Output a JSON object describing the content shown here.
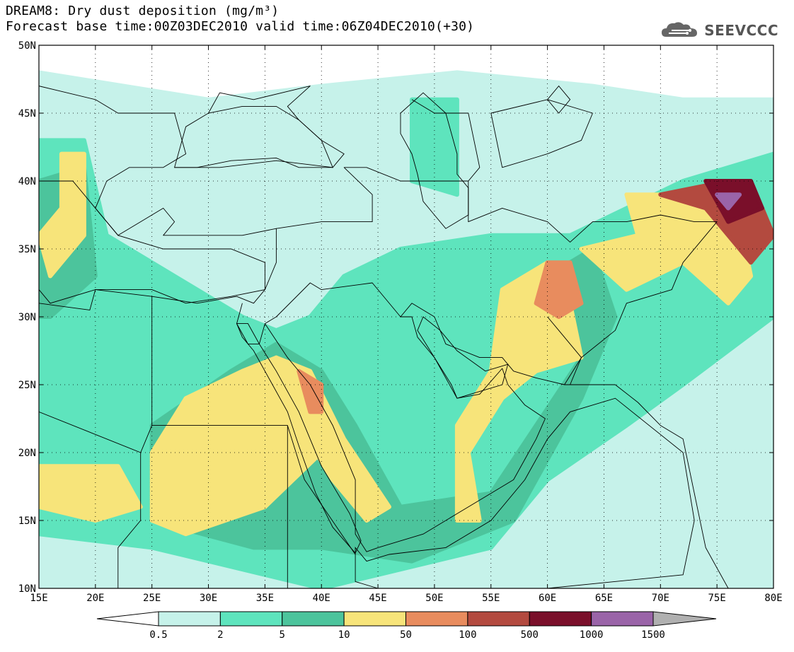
{
  "header": {
    "title": "DREAM8: Dry dust deposition (mg/m³)",
    "subtitle": "Forecast base time:00Z03DEC2010 valid time:06Z04DEC2010(+30)"
  },
  "logo": {
    "text": "SEEVCCC",
    "icon": "cloud-icon"
  },
  "map": {
    "lon_range": [
      15,
      80
    ],
    "lat_range": [
      10,
      50
    ],
    "lon_ticks": [
      {
        "value": 15,
        "label": "15E"
      },
      {
        "value": 20,
        "label": "20E"
      },
      {
        "value": 25,
        "label": "25E"
      },
      {
        "value": 30,
        "label": "30E"
      },
      {
        "value": 35,
        "label": "35E"
      },
      {
        "value": 40,
        "label": "40E"
      },
      {
        "value": 45,
        "label": "45E"
      },
      {
        "value": 50,
        "label": "50E"
      },
      {
        "value": 55,
        "label": "55E"
      },
      {
        "value": 60,
        "label": "60E"
      },
      {
        "value": 65,
        "label": "65E"
      },
      {
        "value": 70,
        "label": "70E"
      },
      {
        "value": 75,
        "label": "75E"
      },
      {
        "value": 80,
        "label": "80E"
      }
    ],
    "lat_ticks": [
      {
        "value": 10,
        "label": "10N"
      },
      {
        "value": 15,
        "label": "15N"
      },
      {
        "value": 20,
        "label": "20N"
      },
      {
        "value": 25,
        "label": "25N"
      },
      {
        "value": 30,
        "label": "30N"
      },
      {
        "value": 35,
        "label": "35N"
      },
      {
        "value": 40,
        "label": "40N"
      },
      {
        "value": 45,
        "label": "45N"
      },
      {
        "value": 50,
        "label": "50N"
      }
    ],
    "gridlines": true
  },
  "colorbar": {
    "levels": [
      "0.5",
      "2",
      "5",
      "10",
      "50",
      "100",
      "500",
      "1000",
      "1500"
    ],
    "colors": [
      "#ffffff",
      "#c6f2ea",
      "#5ee4bd",
      "#4cc49c",
      "#f7e47a",
      "#e88c5e",
      "#b34a3f",
      "#7a0f2a",
      "#9a64a8",
      "#b0b0b0"
    ]
  },
  "dust_regions": [
    {
      "level": 1,
      "points": [
        [
          15,
          48
        ],
        [
          30,
          46
        ],
        [
          40,
          47
        ],
        [
          52,
          48
        ],
        [
          64,
          47
        ],
        [
          72,
          46
        ],
        [
          80,
          46
        ],
        [
          80,
          10
        ],
        [
          15,
          10
        ]
      ]
    },
    {
      "level": 2,
      "points": [
        [
          15,
          43
        ],
        [
          19,
          43
        ],
        [
          21,
          36
        ],
        [
          33,
          30
        ],
        [
          36,
          29
        ],
        [
          39,
          30
        ],
        [
          42,
          33
        ],
        [
          47,
          35
        ],
        [
          55,
          36
        ],
        [
          62,
          36
        ],
        [
          72,
          40
        ],
        [
          80,
          42
        ],
        [
          80,
          30
        ],
        [
          72,
          25
        ],
        [
          67,
          22
        ],
        [
          60,
          18
        ],
        [
          55,
          13
        ],
        [
          45,
          11
        ],
        [
          40,
          10
        ],
        [
          25,
          13
        ],
        [
          15,
          14
        ]
      ]
    },
    {
      "level": 2,
      "points": [
        [
          48,
          46
        ],
        [
          52,
          46
        ],
        [
          52,
          39
        ],
        [
          48,
          40
        ]
      ]
    },
    {
      "level": 3,
      "points": [
        [
          15,
          40
        ],
        [
          19,
          41
        ],
        [
          20,
          33
        ],
        [
          16,
          30
        ],
        [
          15,
          30
        ]
      ]
    },
    {
      "level": 3,
      "points": [
        [
          25,
          22
        ],
        [
          32,
          26
        ],
        [
          36,
          28
        ],
        [
          40,
          26
        ],
        [
          43,
          22
        ],
        [
          47,
          16
        ],
        [
          55,
          17
        ],
        [
          63,
          27
        ],
        [
          60,
          33
        ],
        [
          64,
          35
        ],
        [
          66,
          30
        ],
        [
          63,
          24
        ],
        [
          57,
          15
        ],
        [
          48,
          12
        ],
        [
          40,
          13
        ],
        [
          34,
          13
        ],
        [
          25,
          15
        ]
      ]
    },
    {
      "level": 4,
      "points": [
        [
          15,
          19
        ],
        [
          22,
          19
        ],
        [
          24,
          16
        ],
        [
          20,
          15
        ],
        [
          15,
          16
        ]
      ]
    },
    {
      "level": 4,
      "points": [
        [
          15,
          36
        ],
        [
          17,
          38
        ],
        [
          17,
          42
        ],
        [
          19,
          42
        ],
        [
          19,
          36
        ],
        [
          16,
          33
        ]
      ]
    },
    {
      "level": 4,
      "points": [
        [
          25,
          20
        ],
        [
          28,
          24
        ],
        [
          33,
          26
        ],
        [
          36,
          27
        ],
        [
          38,
          22
        ],
        [
          40,
          20
        ],
        [
          35,
          16
        ],
        [
          28,
          14
        ],
        [
          25,
          15
        ]
      ]
    },
    {
      "level": 4,
      "points": [
        [
          36,
          27
        ],
        [
          39,
          26
        ],
        [
          42,
          21
        ],
        [
          46,
          16
        ],
        [
          44,
          15
        ],
        [
          41,
          18
        ],
        [
          38,
          22
        ]
      ]
    },
    {
      "level": 4,
      "points": [
        [
          53,
          20
        ],
        [
          56,
          24
        ],
        [
          59,
          26
        ],
        [
          63,
          27
        ],
        [
          62,
          31
        ],
        [
          60,
          34
        ],
        [
          56,
          32
        ],
        [
          55,
          26
        ],
        [
          52,
          22
        ],
        [
          52,
          15
        ],
        [
          54,
          15
        ]
      ]
    },
    {
      "level": 4,
      "points": [
        [
          63,
          35
        ],
        [
          68,
          36
        ],
        [
          67,
          39
        ],
        [
          73,
          39
        ],
        [
          77,
          37
        ],
        [
          78,
          33
        ],
        [
          76,
          31
        ],
        [
          72,
          34
        ],
        [
          67,
          32
        ]
      ]
    },
    {
      "level": 5,
      "points": [
        [
          38,
          26
        ],
        [
          40,
          25
        ],
        [
          40,
          23
        ],
        [
          39,
          23
        ]
      ]
    },
    {
      "level": 5,
      "points": [
        [
          60,
          34
        ],
        [
          62,
          34
        ],
        [
          63,
          31
        ],
        [
          61,
          30
        ],
        [
          59,
          31
        ]
      ]
    },
    {
      "level": 6,
      "points": [
        [
          70,
          39
        ],
        [
          76,
          40
        ],
        [
          79,
          38
        ],
        [
          80,
          36
        ],
        [
          78,
          34
        ],
        [
          74,
          38
        ]
      ]
    },
    {
      "level": 7,
      "points": [
        [
          74,
          40
        ],
        [
          78,
          40
        ],
        [
          79,
          38
        ],
        [
          76,
          37
        ]
      ]
    },
    {
      "level": 8,
      "points": [
        [
          75,
          39
        ],
        [
          77,
          39
        ],
        [
          76,
          38
        ]
      ]
    }
  ],
  "borders": [
    [
      [
        15,
        47
      ],
      [
        20,
        46
      ],
      [
        22,
        45
      ],
      [
        27,
        45
      ],
      [
        28,
        42
      ],
      [
        26,
        41
      ],
      [
        23,
        41
      ],
      [
        21,
        40
      ],
      [
        20,
        38
      ],
      [
        22,
        36
      ],
      [
        24,
        37
      ],
      [
        26,
        38
      ],
      [
        27,
        37
      ],
      [
        26,
        36
      ],
      [
        29,
        36
      ],
      [
        33,
        36
      ],
      [
        36,
        36.5
      ],
      [
        36,
        34
      ],
      [
        35,
        32
      ],
      [
        34,
        31
      ],
      [
        32.5,
        31.5
      ],
      [
        29,
        31
      ],
      [
        25,
        31.5
      ],
      [
        20,
        32
      ],
      [
        19.5,
        30.5
      ],
      [
        15,
        31
      ]
    ],
    [
      [
        27,
        41
      ],
      [
        31,
        41
      ],
      [
        36,
        41.5
      ],
      [
        41,
        41
      ],
      [
        42,
        42
      ],
      [
        40,
        43
      ],
      [
        38,
        44.5
      ],
      [
        37,
        45.5
      ],
      [
        39,
        47
      ],
      [
        34,
        46
      ],
      [
        31,
        46.5
      ],
      [
        30,
        45
      ]
    ],
    [
      [
        36,
        36.5
      ],
      [
        40,
        37
      ],
      [
        42,
        37
      ],
      [
        44.5,
        37
      ],
      [
        44.5,
        39
      ],
      [
        42,
        41
      ],
      [
        44,
        41
      ],
      [
        47,
        40
      ],
      [
        50,
        40
      ],
      [
        53,
        40
      ],
      [
        53,
        37
      ],
      [
        56,
        38
      ],
      [
        60,
        37
      ],
      [
        62,
        35.5
      ],
      [
        64,
        37
      ],
      [
        67,
        37
      ],
      [
        70,
        37.5
      ],
      [
        73,
        37
      ],
      [
        75,
        37
      ],
      [
        72,
        34
      ],
      [
        71,
        32
      ],
      [
        67,
        31
      ],
      [
        66,
        29
      ],
      [
        63,
        27
      ],
      [
        62,
        25
      ]
    ],
    [
      [
        25,
        31.5
      ],
      [
        25,
        22
      ],
      [
        37,
        22
      ],
      [
        38.5,
        18
      ],
      [
        43,
        12.5
      ]
    ],
    [
      [
        35,
        29.5
      ],
      [
        37,
        27
      ],
      [
        39,
        25
      ],
      [
        41,
        22
      ],
      [
        43,
        18
      ],
      [
        43,
        14
      ],
      [
        44,
        12.7
      ],
      [
        45,
        13
      ],
      [
        49,
        14
      ],
      [
        52,
        15.5
      ],
      [
        55,
        17
      ],
      [
        57,
        18
      ],
      [
        59,
        21
      ],
      [
        59.8,
        22.5
      ],
      [
        58,
        23.5
      ],
      [
        56.5,
        25
      ],
      [
        56,
        26.2
      ],
      [
        54,
        24.3
      ],
      [
        52,
        24
      ],
      [
        51.5,
        25
      ],
      [
        50,
        27
      ],
      [
        48.5,
        28.5
      ],
      [
        48,
        30
      ],
      [
        47,
        30
      ],
      [
        44.5,
        32.5
      ],
      [
        40,
        32
      ],
      [
        39,
        32.5
      ],
      [
        36,
        30
      ],
      [
        35,
        29.5
      ]
    ],
    [
      [
        33,
        31
      ],
      [
        32.5,
        29.5
      ],
      [
        33.5,
        28
      ],
      [
        34.5,
        28
      ],
      [
        35,
        29.5
      ]
    ],
    [
      [
        25,
        22
      ],
      [
        24,
        20
      ],
      [
        24,
        15
      ],
      [
        22,
        13
      ],
      [
        22,
        10
      ]
    ],
    [
      [
        15,
        23
      ],
      [
        24,
        20
      ]
    ],
    [
      [
        37,
        22
      ],
      [
        37,
        10
      ]
    ],
    [
      [
        47,
        30
      ],
      [
        48,
        31
      ],
      [
        50,
        30
      ],
      [
        51,
        28
      ],
      [
        54,
        27
      ],
      [
        56,
        27
      ],
      [
        57,
        26
      ],
      [
        59,
        25.5
      ],
      [
        61.5,
        25
      ],
      [
        66,
        25
      ],
      [
        68,
        23.7
      ],
      [
        70,
        22
      ],
      [
        72,
        21
      ],
      [
        73,
        17
      ],
      [
        74,
        13
      ],
      [
        76,
        10
      ]
    ],
    [
      [
        61.5,
        25
      ],
      [
        63,
        27
      ],
      [
        61,
        29
      ],
      [
        60,
        30
      ]
    ],
    [
      [
        64,
        45
      ],
      [
        63,
        43
      ],
      [
        60,
        42
      ],
      [
        56,
        41
      ],
      [
        55,
        45
      ],
      [
        60,
        46
      ],
      [
        64,
        45
      ]
    ],
    [
      [
        48,
        46
      ],
      [
        50,
        45
      ],
      [
        53,
        45
      ],
      [
        54,
        41
      ],
      [
        53,
        40
      ]
    ]
  ],
  "water": [
    [
      [
        27,
        41
      ],
      [
        29,
        41
      ],
      [
        32,
        41.5
      ],
      [
        36,
        41.7
      ],
      [
        38,
        41
      ],
      [
        41,
        41
      ],
      [
        40,
        43
      ],
      [
        38,
        44.5
      ],
      [
        36,
        45.5
      ],
      [
        33,
        45.5
      ],
      [
        30,
        45
      ],
      [
        28,
        44
      ],
      [
        27.5,
        42.5
      ]
    ],
    [
      [
        47,
        45
      ],
      [
        49,
        46.5
      ],
      [
        51,
        45
      ],
      [
        52,
        42
      ],
      [
        52,
        40.5
      ],
      [
        53,
        39.5
      ],
      [
        53,
        37.5
      ],
      [
        51,
        36.5
      ],
      [
        50,
        37.5
      ],
      [
        49,
        38.5
      ],
      [
        48.5,
        40.5
      ],
      [
        48,
        42
      ],
      [
        47,
        43.5
      ]
    ],
    [
      [
        43,
        13
      ],
      [
        44,
        12
      ],
      [
        46,
        12.5
      ],
      [
        51,
        13
      ],
      [
        55,
        15
      ],
      [
        58,
        18
      ],
      [
        60,
        21
      ],
      [
        62,
        23
      ],
      [
        66,
        24
      ],
      [
        72,
        20
      ],
      [
        73,
        15
      ],
      [
        72,
        11
      ],
      [
        60,
        10
      ],
      [
        45,
        10
      ],
      [
        43,
        10.5
      ]
    ],
    [
      [
        49,
        30
      ],
      [
        50.5,
        29
      ],
      [
        52,
        27.5
      ],
      [
        54.5,
        26
      ],
      [
        56.5,
        26.5
      ],
      [
        56,
        25
      ],
      [
        54,
        24.5
      ],
      [
        52,
        24
      ],
      [
        51,
        25.5
      ],
      [
        50,
        27
      ],
      [
        48.5,
        29
      ]
    ],
    [
      [
        32.5,
        29.5
      ],
      [
        33,
        28.5
      ],
      [
        34,
        27.5
      ],
      [
        35,
        26
      ],
      [
        37,
        23
      ],
      [
        38,
        20.5
      ],
      [
        39.5,
        17
      ],
      [
        41,
        14.5
      ],
      [
        43,
        12.6
      ],
      [
        43.5,
        13.5
      ],
      [
        42.5,
        15.5
      ],
      [
        40,
        19
      ],
      [
        38,
        23
      ],
      [
        36,
        26
      ],
      [
        34.5,
        28
      ],
      [
        33.5,
        29.5
      ]
    ],
    [
      [
        15,
        40
      ],
      [
        18,
        40
      ],
      [
        20,
        38
      ],
      [
        22,
        36
      ],
      [
        26,
        35
      ],
      [
        32,
        35
      ],
      [
        35,
        34
      ],
      [
        35,
        32
      ],
      [
        32,
        31.5
      ],
      [
        28,
        31
      ],
      [
        25,
        32
      ],
      [
        20,
        32
      ],
      [
        16,
        31
      ],
      [
        15,
        32
      ]
    ],
    [
      [
        60,
        46
      ],
      [
        61,
        47
      ],
      [
        62,
        46
      ],
      [
        61,
        45
      ]
    ]
  ]
}
